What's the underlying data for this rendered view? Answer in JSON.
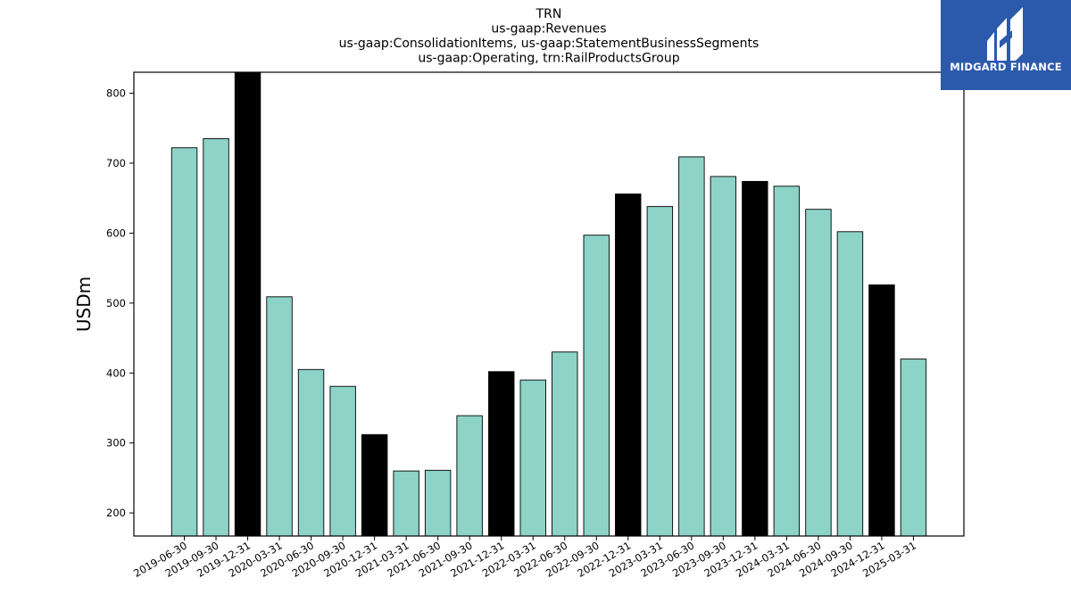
{
  "chart_data": {
    "type": "bar",
    "title": [
      "TRN",
      "us-gaap:Revenues",
      "us-gaap:ConsolidationItems, us-gaap:StatementBusinessSegments",
      "us-gaap:Operating, trn:RailProductsGroup"
    ],
    "xlabel": "",
    "ylabel": "USDm",
    "ylim": [
      167,
      830
    ],
    "yticks": [
      200,
      300,
      400,
      500,
      600,
      700,
      800
    ],
    "grid": false,
    "categories": [
      "2019-06-30",
      "2019-09-30",
      "2019-12-31",
      "2020-03-31",
      "2020-06-30",
      "2020-09-30",
      "2020-12-31",
      "2021-03-31",
      "2021-06-30",
      "2021-09-30",
      "2021-12-31",
      "2022-03-31",
      "2022-06-30",
      "2022-09-30",
      "2022-12-31",
      "2023-03-31",
      "2023-06-30",
      "2023-09-30",
      "2023-12-31",
      "2024-03-31",
      "2024-06-30",
      "2024-09-30",
      "2024-12-31",
      "2025-03-31"
    ],
    "values": [
      722,
      735,
      830,
      509,
      405,
      381,
      312,
      260,
      261,
      339,
      402,
      390,
      430,
      597,
      656,
      638,
      709,
      681,
      674,
      667,
      634,
      602,
      526,
      420
    ],
    "highlight_categories": [
      "2019-12-31",
      "2020-12-31",
      "2021-12-31",
      "2022-12-31",
      "2023-12-31",
      "2024-12-31"
    ],
    "colors": {
      "bar": "#8dd3c7",
      "highlight": "#000000",
      "edge": "#000000"
    }
  },
  "logo": {
    "text": "MIDGARD FINANCE",
    "background": "#2b5aad"
  }
}
